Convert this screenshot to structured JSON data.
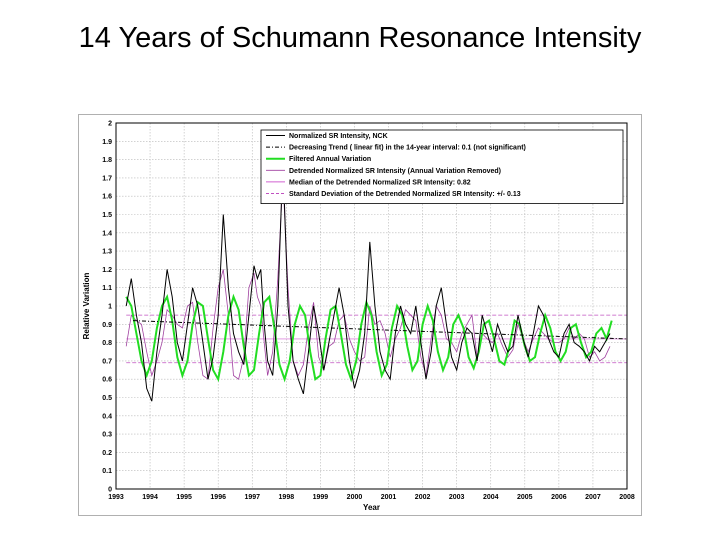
{
  "slide": {
    "title": "14 Years of Schumann Resonance Intensity"
  },
  "chart_data": {
    "type": "line",
    "title": "14 Years of Schumann Resonance Intensity",
    "xlabel": "Year",
    "ylabel": "Relative Variation",
    "xlim": [
      1993,
      2008
    ],
    "ylim": [
      0,
      2
    ],
    "grid": true,
    "legend_position": "top-right",
    "x_ticks": [
      "1993",
      "1994",
      "1995",
      "1996",
      "1997",
      "1998",
      "1999",
      "2000",
      "2001",
      "2002",
      "2003",
      "2004",
      "2005",
      "2006",
      "2007",
      "2008"
    ],
    "y_ticks": [
      "0",
      "0.1",
      "0.2",
      "0.3",
      "0.4",
      "0.5",
      "0.6",
      "0.7",
      "0.8",
      "0.9",
      "1",
      "1.1",
      "1.2",
      "1.3",
      "1.4",
      "1.5",
      "1.6",
      "1.7",
      "1.8",
      "1.9",
      "2"
    ],
    "colors": {
      "normalized": "#000000",
      "trend": "#000000",
      "filtered": "#22dd22",
      "detrended": "#a040a0",
      "median": "#d060d0",
      "stddev": "#c050c0"
    },
    "legend": [
      "Normalized SR Intensity, NCK",
      "Decreasing Trend ( linear fit) in the 14-year interval: 0.1 (not significant)",
      "Filtered Annual Variation",
      "Detrended Normalized SR Intensity  (Annual Variation Removed)",
      "Median of the Detrended Normalized SR Intensity: 0.82",
      "Standard Deviation of the Detrended Normalized SR Intensity: +/- 0.13"
    ],
    "trend": {
      "x": [
        1993.5,
        2008
      ],
      "y": [
        0.92,
        0.82
      ]
    },
    "median": 0.82,
    "stddev_band": [
      0.69,
      0.95
    ],
    "series": [
      {
        "name": "Normalized SR Intensity, NCK",
        "x": [
          1993.3,
          1993.45,
          1993.6,
          1993.75,
          1993.9,
          1994.05,
          1994.2,
          1994.35,
          1994.5,
          1994.65,
          1994.8,
          1994.95,
          1995.1,
          1995.25,
          1995.4,
          1995.55,
          1995.7,
          1995.85,
          1996.0,
          1996.15,
          1996.3,
          1996.45,
          1996.6,
          1996.75,
          1996.9,
          1997.05,
          1997.15,
          1997.25,
          1997.35,
          1997.45,
          1997.6,
          1997.75,
          1997.9,
          1998.05,
          1998.2,
          1998.35,
          1998.5,
          1998.65,
          1998.8,
          1998.95,
          1999.1,
          1999.25,
          1999.4,
          1999.55,
          1999.7,
          1999.85,
          2000.0,
          2000.15,
          2000.3,
          2000.45,
          2000.6,
          2000.75,
          2000.9,
          2001.05,
          2001.2,
          2001.35,
          2001.5,
          2001.65,
          2001.8,
          2001.95,
          2002.1,
          2002.25,
          2002.4,
          2002.55,
          2002.7,
          2002.85,
          2003.0,
          2003.15,
          2003.3,
          2003.45,
          2003.6,
          2003.75,
          2003.9,
          2004.05,
          2004.2,
          2004.35,
          2004.5,
          2004.65,
          2004.8,
          2004.95,
          2005.1,
          2005.25,
          2005.4,
          2005.55,
          2005.7,
          2005.85,
          2006.0,
          2006.15,
          2006.3,
          2006.45,
          2006.6,
          2006.75,
          2006.9,
          2007.05,
          2007.2,
          2007.35,
          2007.5
        ],
        "values": [
          1.0,
          1.15,
          0.95,
          0.8,
          0.55,
          0.48,
          0.75,
          0.95,
          1.2,
          1.05,
          0.8,
          0.7,
          0.9,
          1.1,
          1.0,
          0.8,
          0.6,
          0.72,
          0.95,
          1.5,
          1.1,
          0.85,
          0.75,
          0.68,
          0.95,
          1.22,
          1.15,
          1.2,
          0.9,
          0.7,
          0.62,
          1.0,
          1.8,
          1.0,
          0.7,
          0.6,
          0.52,
          0.75,
          1.0,
          0.85,
          0.65,
          0.8,
          0.95,
          1.1,
          0.95,
          0.7,
          0.55,
          0.65,
          0.85,
          1.35,
          1.0,
          0.75,
          0.65,
          0.6,
          0.85,
          1.0,
          0.9,
          0.85,
          1.0,
          0.8,
          0.6,
          0.75,
          1.0,
          1.1,
          0.9,
          0.72,
          0.65,
          0.8,
          0.88,
          0.85,
          0.7,
          0.95,
          0.85,
          0.75,
          0.9,
          0.82,
          0.75,
          0.78,
          0.95,
          0.82,
          0.72,
          0.85,
          1.0,
          0.95,
          0.82,
          0.75,
          0.72,
          0.85,
          0.9,
          0.8,
          0.78,
          0.75,
          0.7,
          0.78,
          0.75,
          0.8,
          0.85
        ]
      },
      {
        "name": "Filtered Annual Variation",
        "x": [
          1993.3,
          1993.45,
          1993.6,
          1993.75,
          1993.9,
          1994.05,
          1994.2,
          1994.35,
          1994.5,
          1994.65,
          1994.8,
          1994.95,
          1995.1,
          1995.25,
          1995.4,
          1995.55,
          1995.7,
          1995.85,
          1996.0,
          1996.15,
          1996.3,
          1996.45,
          1996.6,
          1996.75,
          1996.9,
          1997.05,
          1997.2,
          1997.35,
          1997.5,
          1997.65,
          1997.8,
          1997.95,
          1998.1,
          1998.25,
          1998.4,
          1998.55,
          1998.7,
          1998.85,
          1999.0,
          1999.15,
          1999.3,
          1999.45,
          1999.6,
          1999.75,
          1999.9,
          2000.05,
          2000.2,
          2000.35,
          2000.5,
          2000.65,
          2000.8,
          2000.95,
          2001.1,
          2001.25,
          2001.4,
          2001.55,
          2001.7,
          2001.85,
          2002.0,
          2002.15,
          2002.3,
          2002.45,
          2002.6,
          2002.75,
          2002.9,
          2003.05,
          2003.2,
          2003.35,
          2003.5,
          2003.65,
          2003.8,
          2003.95,
          2004.1,
          2004.25,
          2004.4,
          2004.55,
          2004.7,
          2004.85,
          2005.0,
          2005.15,
          2005.3,
          2005.45,
          2005.6,
          2005.75,
          2005.9,
          2006.05,
          2006.2,
          2006.35,
          2006.5,
          2006.65,
          2006.8,
          2006.95,
          2007.1,
          2007.25,
          2007.4,
          2007.55
        ],
        "values": [
          1.05,
          1.0,
          0.85,
          0.7,
          0.62,
          0.7,
          0.88,
          1.0,
          1.05,
          0.92,
          0.72,
          0.62,
          0.7,
          0.9,
          1.02,
          1.0,
          0.82,
          0.65,
          0.6,
          0.75,
          0.95,
          1.05,
          0.98,
          0.78,
          0.62,
          0.65,
          0.85,
          1.02,
          1.05,
          0.88,
          0.68,
          0.6,
          0.7,
          0.9,
          1.0,
          0.95,
          0.75,
          0.6,
          0.62,
          0.82,
          0.98,
          1.0,
          0.85,
          0.68,
          0.6,
          0.7,
          0.9,
          1.02,
          0.95,
          0.75,
          0.62,
          0.68,
          0.88,
          1.0,
          0.95,
          0.78,
          0.65,
          0.7,
          0.9,
          1.0,
          0.92,
          0.75,
          0.65,
          0.72,
          0.9,
          0.95,
          0.88,
          0.72,
          0.66,
          0.75,
          0.9,
          0.92,
          0.82,
          0.7,
          0.68,
          0.78,
          0.92,
          0.9,
          0.78,
          0.7,
          0.72,
          0.85,
          0.95,
          0.88,
          0.75,
          0.7,
          0.75,
          0.88,
          0.9,
          0.8,
          0.72,
          0.75,
          0.85,
          0.88,
          0.82,
          0.92
        ]
      },
      {
        "name": "Detrended Normalized SR Intensity  (Annual Variation Removed)",
        "x": [
          1993.3,
          1993.45,
          1993.6,
          1993.75,
          1993.9,
          1994.05,
          1994.2,
          1994.35,
          1994.5,
          1994.65,
          1994.8,
          1994.95,
          1995.1,
          1995.25,
          1995.4,
          1995.55,
          1995.7,
          1995.85,
          1996.0,
          1996.15,
          1996.3,
          1996.45,
          1996.6,
          1996.75,
          1996.9,
          1997.05,
          1997.15,
          1997.25,
          1997.35,
          1997.45,
          1997.6,
          1997.75,
          1997.9,
          1998.05,
          1998.2,
          1998.35,
          1998.5,
          1998.65,
          1998.8,
          1998.95,
          1999.1,
          1999.25,
          1999.4,
          1999.55,
          1999.7,
          1999.85,
          2000.0,
          2000.15,
          2000.3,
          2000.45,
          2000.6,
          2000.75,
          2000.9,
          2001.05,
          2001.2,
          2001.35,
          2001.5,
          2001.65,
          2001.8,
          2001.95,
          2002.1,
          2002.25,
          2002.4,
          2002.55,
          2002.7,
          2002.85,
          2003.0,
          2003.15,
          2003.3,
          2003.45,
          2003.6,
          2003.75,
          2003.9,
          2004.05,
          2004.2,
          2004.35,
          2004.5,
          2004.65,
          2004.8,
          2004.95,
          2005.1,
          2005.25,
          2005.4,
          2005.55,
          2005.7,
          2005.85,
          2006.0,
          2006.15,
          2006.3,
          2006.45,
          2006.6,
          2006.75,
          2006.9,
          2007.05,
          2007.2,
          2007.35,
          2007.5
        ],
        "values": [
          0.78,
          0.95,
          0.92,
          0.9,
          0.75,
          0.62,
          0.7,
          0.8,
          0.98,
          0.95,
          0.9,
          0.88,
          1.0,
          1.02,
          0.8,
          0.62,
          0.6,
          0.88,
          1.1,
          1.2,
          0.95,
          0.62,
          0.6,
          0.72,
          1.1,
          1.18,
          1.05,
          1.0,
          0.8,
          0.62,
          0.75,
          1.15,
          1.7,
          1.1,
          0.7,
          0.62,
          0.68,
          0.88,
          1.02,
          0.72,
          0.65,
          0.78,
          0.8,
          0.92,
          0.95,
          0.82,
          0.75,
          0.7,
          0.72,
          1.0,
          0.9,
          0.92,
          0.85,
          0.72,
          0.82,
          0.88,
          0.98,
          0.95,
          0.92,
          0.72,
          0.62,
          0.82,
          1.0,
          0.95,
          0.82,
          0.8,
          0.75,
          0.85,
          0.9,
          0.95,
          0.72,
          0.85,
          0.82,
          0.8,
          0.85,
          0.78,
          0.72,
          0.76,
          0.9,
          0.82,
          0.75,
          0.82,
          0.88,
          0.85,
          0.82,
          0.8,
          0.8,
          0.82,
          0.88,
          0.82,
          0.85,
          0.82,
          0.72,
          0.75,
          0.7,
          0.72,
          0.78
        ]
      }
    ]
  }
}
